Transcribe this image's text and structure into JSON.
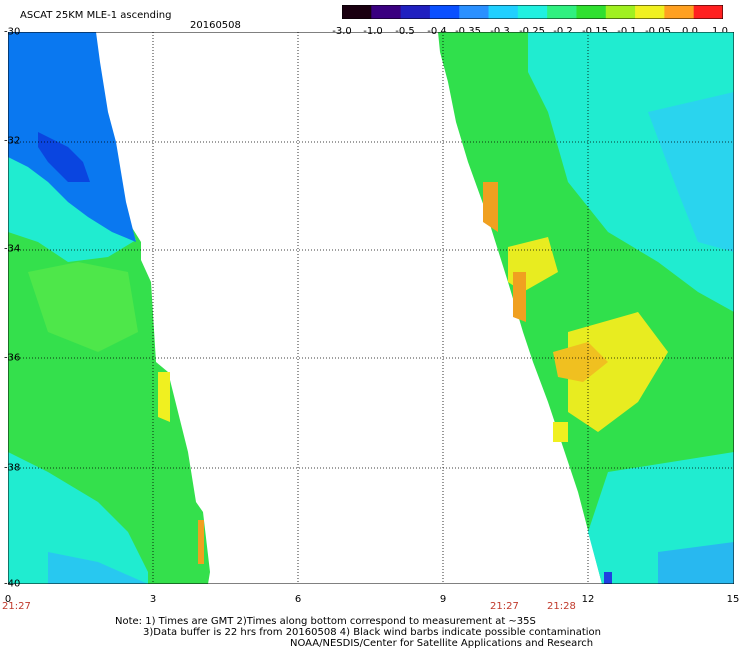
{
  "header": {
    "title": "ASCAT 25KM MLE-1 ascending",
    "date": "20160508"
  },
  "colorbar": {
    "labels": [
      "-3.0",
      "-1.0",
      "-0.5",
      "-0.4",
      "-0.35",
      "-0.3",
      "-0.25",
      "-0.2",
      "-0.15",
      "-0.1",
      "-0.05",
      "0.0",
      "1.0"
    ],
    "colors": [
      "#1a0010",
      "#3a0080",
      "#2020c0",
      "#0a50ff",
      "#2a90ff",
      "#20d0ff",
      "#20f0e0",
      "#30f080",
      "#30e030",
      "#a0f020",
      "#f0f020",
      "#ffa020",
      "#ff2020"
    ]
  },
  "axes": {
    "x_ticks": [
      "0",
      "3",
      "6",
      "9",
      "12",
      "15"
    ],
    "y_ticks": [
      "-30",
      "-32",
      "-34",
      "-36",
      "-38",
      "-40"
    ]
  },
  "times": {
    "left": "21:27",
    "mid1": "21:27",
    "mid2": "21:28"
  },
  "notes": {
    "line1": "Note: 1) Times are GMT 2)Times along bottom correspond to measurement at ~35S",
    "line2": "3)Data buffer is 22 hrs from 20160508 4) Black wind barbs indicate possible contamination",
    "line3": "NOAA/NESDIS/Center for Satellite Applications and Research"
  },
  "colors": {
    "blue": "#0a78f0",
    "dark_blue": "#0a45e0",
    "cyan": "#20ecec",
    "green": "#30e650",
    "light_green": "#40f070",
    "yellow": "#e8ec20",
    "orange": "#f0a020"
  }
}
